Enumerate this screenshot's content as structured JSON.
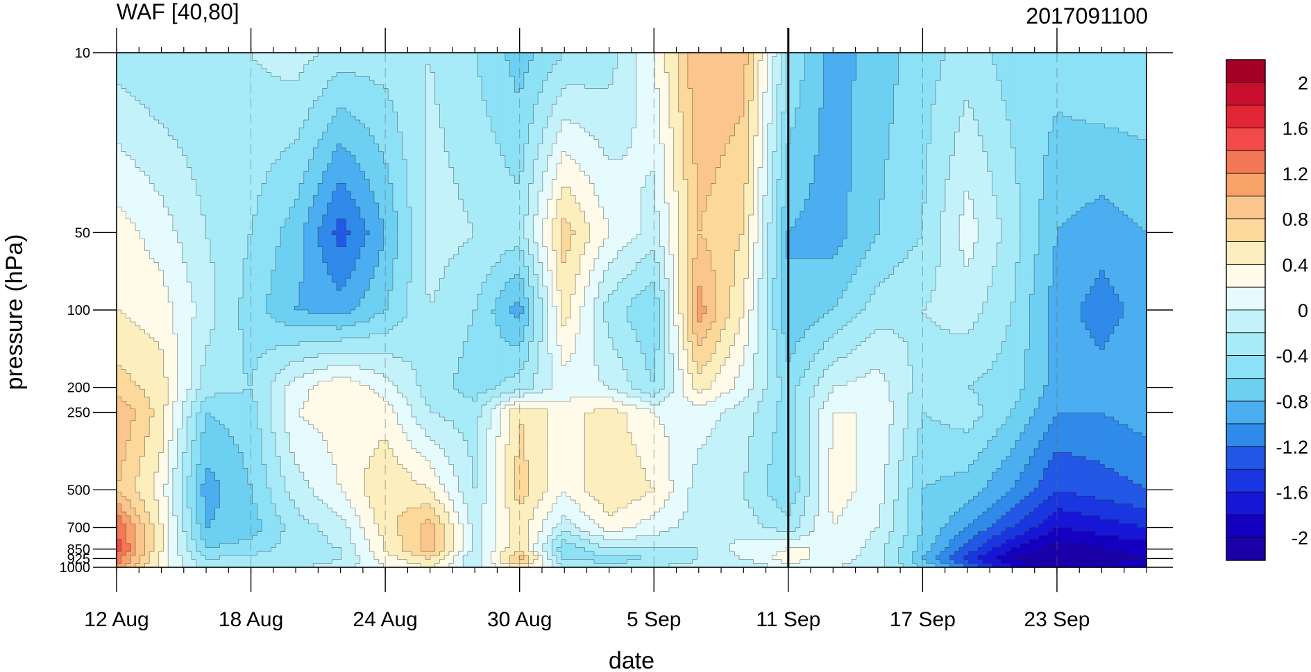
{
  "chart_data": {
    "type": "heatmap",
    "title": "WAF [40,80]",
    "right_title": "2017091100",
    "xlabel": "date",
    "ylabel": "pressure (hPa)",
    "x_tick_labels": [
      "12 Aug",
      "18 Aug",
      "24 Aug",
      "30 Aug",
      "5 Sep",
      "11 Sep",
      "17 Sep",
      "23 Sep"
    ],
    "x_range": [
      "2017-08-12",
      "2017-09-27"
    ],
    "current_date_marker": "2017-09-11",
    "y_scale": "log",
    "y_ticks": [
      10,
      50,
      100,
      200,
      250,
      500,
      700,
      850,
      925,
      1000
    ],
    "y_tick_labels": [
      "10",
      "50",
      "100",
      "200",
      "250",
      "500",
      "700",
      "850",
      "925",
      "1000"
    ],
    "y_range": [
      1000,
      10
    ],
    "pressure_levels": [
      10,
      50,
      100,
      200,
      250,
      500,
      700,
      850,
      925,
      1000
    ],
    "z_series": [
      {
        "date": "2017-08-12",
        "values": [
          -0.3,
          0.3,
          0.4,
          0.7,
          1.0,
          0.8,
          1.4,
          1.5,
          1.3,
          1.2
        ]
      },
      {
        "date": "2017-08-14",
        "values": [
          -0.4,
          0.1,
          0.3,
          0.5,
          0.5,
          0.3,
          0.4,
          0.4,
          0.3,
          0.3
        ]
      },
      {
        "date": "2017-08-16",
        "values": [
          -0.4,
          -0.2,
          -0.1,
          -0.3,
          -0.6,
          -0.9,
          -0.8,
          -0.6,
          -0.4,
          -0.3
        ]
      },
      {
        "date": "2017-08-18",
        "values": [
          -0.2,
          -0.4,
          -0.5,
          -0.4,
          -0.5,
          -0.6,
          -0.7,
          -0.5,
          -0.3,
          -0.2
        ]
      },
      {
        "date": "2017-08-20",
        "values": [
          -0.1,
          -0.7,
          -0.8,
          0.1,
          0.2,
          -0.1,
          -0.3,
          -0.3,
          -0.4,
          -0.2
        ]
      },
      {
        "date": "2017-08-22",
        "values": [
          -0.3,
          -1.3,
          -0.9,
          0.4,
          0.3,
          0.2,
          -0.1,
          -0.2,
          -0.2,
          -0.1
        ]
      },
      {
        "date": "2017-08-24",
        "values": [
          -0.3,
          -0.8,
          -0.6,
          0.1,
          0.3,
          0.6,
          0.5,
          0.4,
          0.3,
          0.2
        ]
      },
      {
        "date": "2017-08-26",
        "values": [
          -0.2,
          -0.1,
          -0.2,
          -0.3,
          -0.2,
          0.4,
          0.9,
          0.9,
          0.6,
          0.4
        ]
      },
      {
        "date": "2017-08-28",
        "values": [
          -0.4,
          -0.2,
          -0.4,
          -0.5,
          -0.3,
          -0.2,
          -0.1,
          -0.1,
          -0.2,
          -0.1
        ]
      },
      {
        "date": "2017-08-30",
        "values": [
          -0.7,
          -0.3,
          -0.9,
          -0.3,
          0.6,
          0.7,
          0.5,
          0.6,
          0.9,
          0.5
        ]
      },
      {
        "date": "2017-09-01",
        "values": [
          -0.4,
          0.7,
          0.5,
          0.1,
          0.3,
          0.2,
          -0.1,
          -0.6,
          -0.4,
          -0.2
        ]
      },
      {
        "date": "2017-09-03",
        "values": [
          -0.3,
          0.2,
          -0.3,
          0.0,
          0.5,
          0.6,
          0.3,
          -0.2,
          -0.5,
          -0.3
        ]
      },
      {
        "date": "2017-09-05",
        "values": [
          0.2,
          -0.1,
          -0.6,
          -0.4,
          0.2,
          0.4,
          0.1,
          -0.2,
          -0.4,
          -0.2
        ]
      },
      {
        "date": "2017-09-07",
        "values": [
          1.0,
          0.8,
          1.1,
          0.5,
          0.1,
          -0.1,
          -0.1,
          -0.2,
          -0.2,
          -0.1
        ]
      },
      {
        "date": "2017-09-09",
        "values": [
          0.9,
          0.6,
          0.4,
          0.1,
          -0.1,
          -0.2,
          -0.1,
          0.1,
          0.0,
          -0.2
        ]
      },
      {
        "date": "2017-09-11",
        "values": [
          -0.4,
          -0.8,
          -0.8,
          -0.5,
          -0.5,
          -0.6,
          -0.3,
          0.2,
          0.3,
          0.1
        ]
      },
      {
        "date": "2017-09-13",
        "values": [
          -0.9,
          -0.9,
          -0.6,
          0.0,
          0.2,
          0.3,
          0.2,
          0.2,
          0.1,
          0.0
        ]
      },
      {
        "date": "2017-09-15",
        "values": [
          -0.7,
          -0.6,
          -0.3,
          0.1,
          0.2,
          0.1,
          0.0,
          -0.1,
          -0.1,
          -0.1
        ]
      },
      {
        "date": "2017-09-17",
        "values": [
          -0.5,
          -0.4,
          -0.2,
          -0.3,
          -0.4,
          -0.6,
          -0.6,
          -0.7,
          -0.8,
          -0.6
        ]
      },
      {
        "date": "2017-09-19",
        "values": [
          -0.3,
          0.1,
          -0.1,
          -0.4,
          -0.3,
          -0.7,
          -1.0,
          -1.3,
          -1.5,
          -1.2
        ]
      },
      {
        "date": "2017-09-21",
        "values": [
          -0.5,
          -0.3,
          -0.4,
          -0.5,
          -0.6,
          -1.0,
          -1.4,
          -1.8,
          -2.0,
          -1.8
        ]
      },
      {
        "date": "2017-09-23",
        "values": [
          -0.5,
          -0.8,
          -0.9,
          -0.9,
          -1.0,
          -1.4,
          -1.8,
          -2.1,
          -2.2,
          -2.0
        ]
      },
      {
        "date": "2017-09-25",
        "values": [
          -0.4,
          -0.9,
          -1.1,
          -0.9,
          -1.0,
          -1.3,
          -1.7,
          -2.0,
          -2.1,
          -1.9
        ]
      },
      {
        "date": "2017-09-27",
        "values": [
          -0.4,
          -0.8,
          -0.9,
          -0.8,
          -0.9,
          -1.2,
          -1.6,
          -1.9,
          -2.0,
          -1.8
        ]
      }
    ],
    "colorbar": {
      "min": -2.2,
      "max": 2.2,
      "step": 0.2,
      "tick_labels": [
        "2",
        "1.6",
        "1.2",
        "0.8",
        "0.4",
        "0",
        "-0.4",
        "-0.8",
        "-1.2",
        "-1.6",
        "-2"
      ],
      "colors": [
        "#a50026",
        "#c8102e",
        "#e32636",
        "#f24a4a",
        "#f47756",
        "#f8a26a",
        "#fac68d",
        "#fcd89a",
        "#fdeebe",
        "#fffbe8",
        "#e6fbfe",
        "#c4f2fb",
        "#a8ebf8",
        "#8de1f6",
        "#6dd0f2",
        "#4aaef0",
        "#2f8ae9",
        "#2358e6",
        "#1a36e0",
        "#1816d6",
        "#1400c0",
        "#1b00a8"
      ]
    }
  }
}
